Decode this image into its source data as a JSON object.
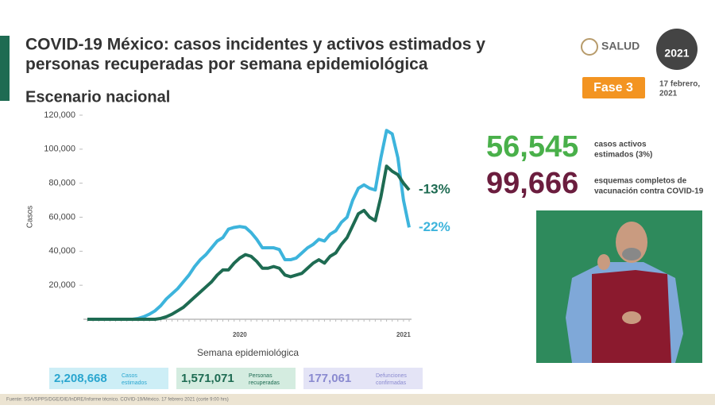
{
  "header": {
    "title_line1": "COVID-19 México: casos incidentes y activos estimados y",
    "title_line2": "personas recuperadas por semana epidemiológica",
    "subtitle": "Escenario nacional",
    "logo": "SALUD",
    "year_badge": "2021",
    "phase": "Fase 3",
    "date_line1": "17 febrero,",
    "date_line2": "2021"
  },
  "stats": [
    {
      "value": "56,545",
      "label_line1": "casos activos",
      "label_line2": "estimados (3%)"
    },
    {
      "value": "99,666",
      "label_line1": "esquemas completos de",
      "label_line2": "vacunación contra COVID-19"
    }
  ],
  "totals": [
    {
      "value": "2,208,668",
      "label_line1": "Casos",
      "label_line2": "estimados"
    },
    {
      "value": "1,571,071",
      "label_line1": "Personas",
      "label_line2": "recuperadas"
    },
    {
      "value": "177,061",
      "label_line1": "Defunciones",
      "label_line2": "confirmadas"
    }
  ],
  "footer": "Fuente: SSA/SPPS/DGE/DIE/InDRE/Informe técnico. COVID-19/México. 17 febrero 2021 (corte 9:00 hrs)",
  "chart_data": {
    "type": "line",
    "ylabel": "Casos",
    "xlabel": "Semana epidemiológica",
    "categories": [
      null,
      null,
      null,
      null,
      null,
      null,
      null,
      null,
      null,
      null,
      null,
      null,
      null,
      null,
      null,
      null,
      null,
      null,
      null,
      null,
      null,
      null,
      null,
      null,
      null,
      null,
      null,
      "2020",
      null,
      null,
      null,
      null,
      null,
      null,
      null,
      null,
      null,
      null,
      null,
      null,
      null,
      null,
      null,
      null,
      null,
      null,
      null,
      null,
      null,
      null,
      null,
      null,
      null,
      null,
      null,
      null,
      "2021",
      null
    ],
    "ylim": [
      0,
      120000
    ],
    "yticks": [
      {
        "value": 20000,
        "label": "20,000"
      },
      {
        "value": 40000,
        "label": "40,000"
      },
      {
        "value": 60000,
        "label": "60,000"
      },
      {
        "value": 80000,
        "label": "80,000"
      },
      {
        "value": 100000,
        "label": "100,000"
      },
      {
        "value": 120000,
        "label": "120,000"
      }
    ],
    "series": [
      {
        "color": "#3db4dc",
        "label": "-22%",
        "values": [
          0,
          0,
          0,
          0,
          0,
          0,
          0,
          0,
          0,
          500,
          1500,
          3000,
          5000,
          8000,
          12000,
          15000,
          18000,
          22000,
          26000,
          31000,
          35000,
          38000,
          42000,
          46000,
          48000,
          53000,
          54000,
          54500,
          54000,
          51000,
          47000,
          42000,
          42000,
          42000,
          41000,
          35000,
          35000,
          36000,
          39000,
          42000,
          44000,
          47000,
          46000,
          50000,
          52000,
          57000,
          60000,
          70000,
          77000,
          79000,
          77000,
          76000,
          95000,
          111000,
          109000,
          95000,
          70000,
          54000
        ]
      },
      {
        "color": "#1e6b52",
        "label": "-13%",
        "values": [
          0,
          0,
          0,
          0,
          0,
          0,
          0,
          0,
          0,
          0,
          0,
          0,
          0,
          500,
          1500,
          3000,
          5000,
          7000,
          10000,
          13000,
          16000,
          19000,
          22000,
          26000,
          29000,
          29000,
          33000,
          36000,
          38000,
          37000,
          34000,
          30000,
          30000,
          31000,
          30000,
          26000,
          25000,
          26000,
          27000,
          30000,
          33000,
          35000,
          33000,
          37000,
          39000,
          44000,
          48000,
          55000,
          62000,
          64000,
          60000,
          58000,
          72000,
          90000,
          87000,
          85000,
          80000,
          76000
        ]
      }
    ]
  }
}
